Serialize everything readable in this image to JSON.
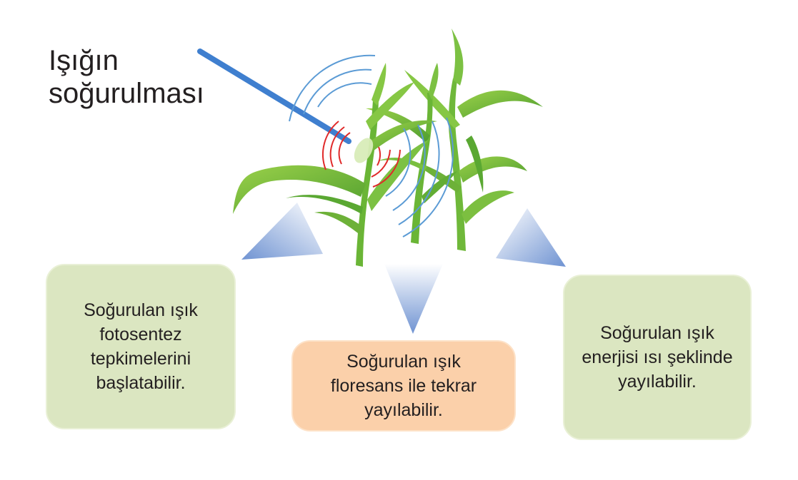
{
  "title": {
    "line1": "Işığın",
    "line2": "soğurulması"
  },
  "outcomes": [
    {
      "lines": [
        "Soğurulan ışık",
        "fotosentez",
        "tepkimelerini",
        "başlatabilir."
      ]
    },
    {
      "lines": [
        "Soğurulan ışık",
        "floresans ile tekrar",
        "yayılabilir."
      ]
    },
    {
      "lines": [
        "Soğurulan ışık",
        "enerjisi ısı şeklinde",
        "yayılabilir."
      ]
    }
  ],
  "colors": {
    "light_ray": "#3f7fcf",
    "absorbed_waves": "#e02a2a",
    "emitted_waves": "#5b9bd5",
    "leaf_light": "#8cc63f",
    "leaf_dark": "#5aa832",
    "arrow_fill": "#7ea0d8",
    "box_green": "#dbe6c1",
    "box_orange": "#fbd0aa"
  }
}
